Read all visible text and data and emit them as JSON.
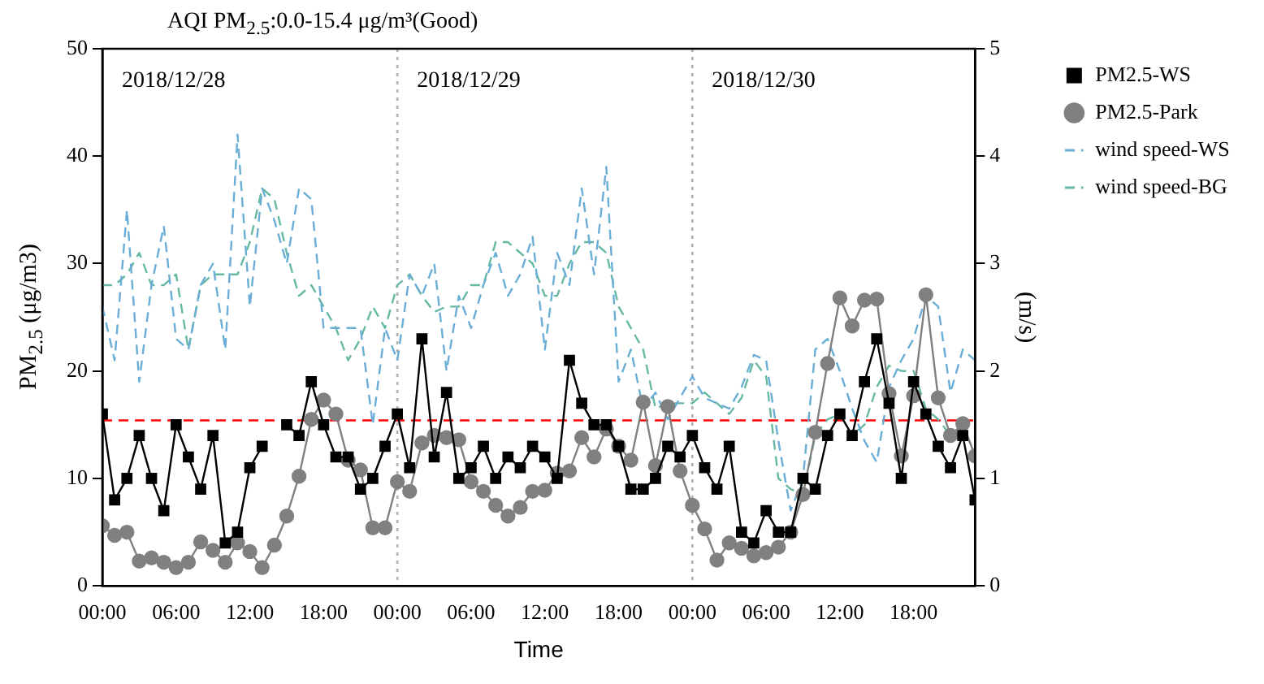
{
  "chart_data": {
    "type": "line",
    "title": "AQI  PM$_{2.5}$:0.0-15.4 μg/m³(Good)",
    "xlabel": "Time",
    "ylabel": "PM$_{2.5}$ (μg/m3)",
    "y2label": "(m/s)",
    "x": [
      "2018-12-28T00:00",
      "2018-12-28T01:00",
      "2018-12-28T02:00",
      "2018-12-28T03:00",
      "2018-12-28T04:00",
      "2018-12-28T05:00",
      "2018-12-28T06:00",
      "2018-12-28T07:00",
      "2018-12-28T08:00",
      "2018-12-28T09:00",
      "2018-12-28T10:00",
      "2018-12-28T11:00",
      "2018-12-28T12:00",
      "2018-12-28T13:00",
      "2018-12-28T14:00",
      "2018-12-28T15:00",
      "2018-12-28T16:00",
      "2018-12-28T17:00",
      "2018-12-28T18:00",
      "2018-12-28T19:00",
      "2018-12-28T20:00",
      "2018-12-28T21:00",
      "2018-12-28T22:00",
      "2018-12-28T23:00",
      "2018-12-29T00:00",
      "2018-12-29T01:00",
      "2018-12-29T02:00",
      "2018-12-29T03:00",
      "2018-12-29T04:00",
      "2018-12-29T05:00",
      "2018-12-29T06:00",
      "2018-12-29T07:00",
      "2018-12-29T08:00",
      "2018-12-29T09:00",
      "2018-12-29T10:00",
      "2018-12-29T11:00",
      "2018-12-29T12:00",
      "2018-12-29T13:00",
      "2018-12-29T14:00",
      "2018-12-29T15:00",
      "2018-12-29T16:00",
      "2018-12-29T17:00",
      "2018-12-29T18:00",
      "2018-12-29T19:00",
      "2018-12-29T20:00",
      "2018-12-29T21:00",
      "2018-12-29T22:00",
      "2018-12-29T23:00",
      "2018-12-30T00:00",
      "2018-12-30T01:00",
      "2018-12-30T02:00",
      "2018-12-30T03:00",
      "2018-12-30T04:00",
      "2018-12-30T05:00",
      "2018-12-30T06:00",
      "2018-12-30T07:00",
      "2018-12-30T08:00",
      "2018-12-30T09:00",
      "2018-12-30T10:00",
      "2018-12-30T11:00",
      "2018-12-30T12:00",
      "2018-12-30T13:00",
      "2018-12-30T14:00",
      "2018-12-30T15:00",
      "2018-12-30T16:00",
      "2018-12-30T17:00",
      "2018-12-30T18:00",
      "2018-12-30T19:00",
      "2018-12-30T20:00",
      "2018-12-30T21:00",
      "2018-12-30T22:00",
      "2018-12-30T23:00"
    ],
    "series": [
      {
        "name": "PM2.5-WS",
        "color": "#000000",
        "marker": "square",
        "line_style": "solid",
        "values": [
          16,
          8,
          10,
          14,
          10,
          7,
          15,
          12,
          9,
          14,
          4,
          5,
          11,
          13,
          null,
          15,
          14,
          19,
          15,
          12,
          12,
          9,
          10,
          13,
          16,
          11,
          23,
          12,
          18,
          10,
          11,
          13,
          10,
          12,
          11,
          13,
          12,
          10,
          21,
          17,
          15,
          15,
          13,
          9,
          9,
          10,
          13,
          12,
          14,
          11,
          9,
          13,
          5,
          4,
          7,
          5,
          5,
          10,
          9,
          14,
          16,
          14,
          19,
          23,
          17,
          10,
          19,
          16,
          13,
          11,
          14,
          8
        ]
      },
      {
        "name": "PM2.5-Park",
        "color": "#808080",
        "marker": "circle",
        "line_style": "solid",
        "values": [
          5.6,
          4.7,
          5,
          2.3,
          2.6,
          2.2,
          1.7,
          2.2,
          4.1,
          3.3,
          2.2,
          4,
          3.2,
          1.7,
          3.8,
          6.5,
          10.2,
          15.5,
          17.3,
          16,
          11.7,
          10.8,
          5.4,
          5.4,
          9.7,
          8.8,
          13.3,
          14,
          13.8,
          13.6,
          9.7,
          8.8,
          7.5,
          6.5,
          7.3,
          8.8,
          8.9,
          10.5,
          10.7,
          13.8,
          12,
          14.6,
          13,
          11.7,
          17.1,
          11.2,
          16.7,
          10.7,
          7.5,
          5.3,
          2.4,
          4,
          3.5,
          2.8,
          3.1,
          3.6,
          5,
          8.5,
          14.3,
          20.7,
          26.8,
          24.2,
          26.6,
          26.7,
          17.9,
          12.1,
          17.7,
          27.1,
          17.5,
          14,
          15.1,
          12.1
        ]
      },
      {
        "name": "wind speed-WS",
        "color": "#6aaed6",
        "marker": "none",
        "line_style": "dashed",
        "axis": "y2",
        "values": [
          2.6,
          2.1,
          3.5,
          1.9,
          2.8,
          3.35,
          2.3,
          2.2,
          2.8,
          3.0,
          2.2,
          4.2,
          2.6,
          3.7,
          3.4,
          3.0,
          3.7,
          3.6,
          2.4,
          2.4,
          2.4,
          2.4,
          1.5,
          2.4,
          2.1,
          2.9,
          2.7,
          3.0,
          2.0,
          2.7,
          2.4,
          2.8,
          3.1,
          2.7,
          2.9,
          3.25,
          2.2,
          3.1,
          2.8,
          3.7,
          2.9,
          3.9,
          1.9,
          2.2,
          1.65,
          1.8,
          1.55,
          1.75,
          1.95,
          1.75,
          1.7,
          1.65,
          1.85,
          2.15,
          2.1,
          1.35,
          0.7,
          1.0,
          2.2,
          2.3,
          2.0,
          1.65,
          1.35,
          1.15,
          1.85,
          2.1,
          2.3,
          2.7,
          2.6,
          1.8,
          2.2,
          2.1
        ]
      },
      {
        "name": "wind speed-BG",
        "color": "#66b8a4",
        "marker": "none",
        "line_style": "dashed",
        "axis": "y2",
        "values": [
          2.8,
          2.8,
          2.9,
          3.1,
          2.8,
          2.8,
          2.9,
          2.2,
          2.8,
          2.9,
          2.9,
          2.9,
          3.2,
          3.7,
          3.6,
          3.1,
          2.7,
          2.8,
          2.6,
          2.4,
          2.1,
          2.3,
          2.6,
          2.4,
          2.8,
          2.9,
          2.7,
          2.55,
          2.6,
          2.6,
          2.8,
          2.8,
          3.2,
          3.2,
          3.1,
          3.0,
          2.7,
          2.7,
          3.0,
          3.2,
          3.2,
          3.1,
          2.6,
          2.4,
          2.2,
          1.65,
          1.7,
          1.7,
          1.7,
          1.8,
          1.7,
          1.6,
          1.75,
          2.1,
          1.95,
          1.0,
          0.9,
          0.85,
          1.4,
          1.55,
          1.6,
          1.4,
          1.5,
          1.85,
          2.05,
          2.0,
          2.0,
          1.65,
          1.55,
          1.4,
          1.45,
          1.25
        ]
      }
    ],
    "xlim": [
      "2018-12-28T00:00",
      "2018-12-30T23:00"
    ],
    "xticks": [
      {
        "value": "2018-12-28T00:00",
        "label": "00:00"
      },
      {
        "value": "2018-12-28T06:00",
        "label": "06:00"
      },
      {
        "value": "2018-12-28T12:00",
        "label": "12:00"
      },
      {
        "value": "2018-12-28T18:00",
        "label": "18:00"
      },
      {
        "value": "2018-12-29T00:00",
        "label": "00:00"
      },
      {
        "value": "2018-12-29T06:00",
        "label": "06:00"
      },
      {
        "value": "2018-12-29T12:00",
        "label": "12:00"
      },
      {
        "value": "2018-12-29T18:00",
        "label": "18:00"
      },
      {
        "value": "2018-12-30T00:00",
        "label": "00:00"
      },
      {
        "value": "2018-12-30T06:00",
        "label": "06:00"
      },
      {
        "value": "2018-12-30T12:00",
        "label": "12:00"
      },
      {
        "value": "2018-12-30T18:00",
        "label": "18:00"
      }
    ],
    "ylim": [
      0,
      50
    ],
    "yticks": [
      0,
      10,
      20,
      30,
      40,
      50
    ],
    "y2lim": [
      0,
      5
    ],
    "y2ticks": [
      0,
      1,
      2,
      3,
      4,
      5
    ],
    "ref_lines": [
      {
        "axis": "y",
        "value": 15.4,
        "color": "#ff0000",
        "line_style": "dashed"
      },
      {
        "axis": "x",
        "value": "2018-12-29T00:00",
        "color": "#b0b0b0",
        "line_style": "dotted"
      },
      {
        "axis": "x",
        "value": "2018-12-30T00:00",
        "color": "#b0b0b0",
        "line_style": "dotted"
      }
    ],
    "annotations": [
      "2018/12/28",
      "2018/12/29",
      "2018/12/30"
    ],
    "grid": false,
    "legend": "right"
  }
}
